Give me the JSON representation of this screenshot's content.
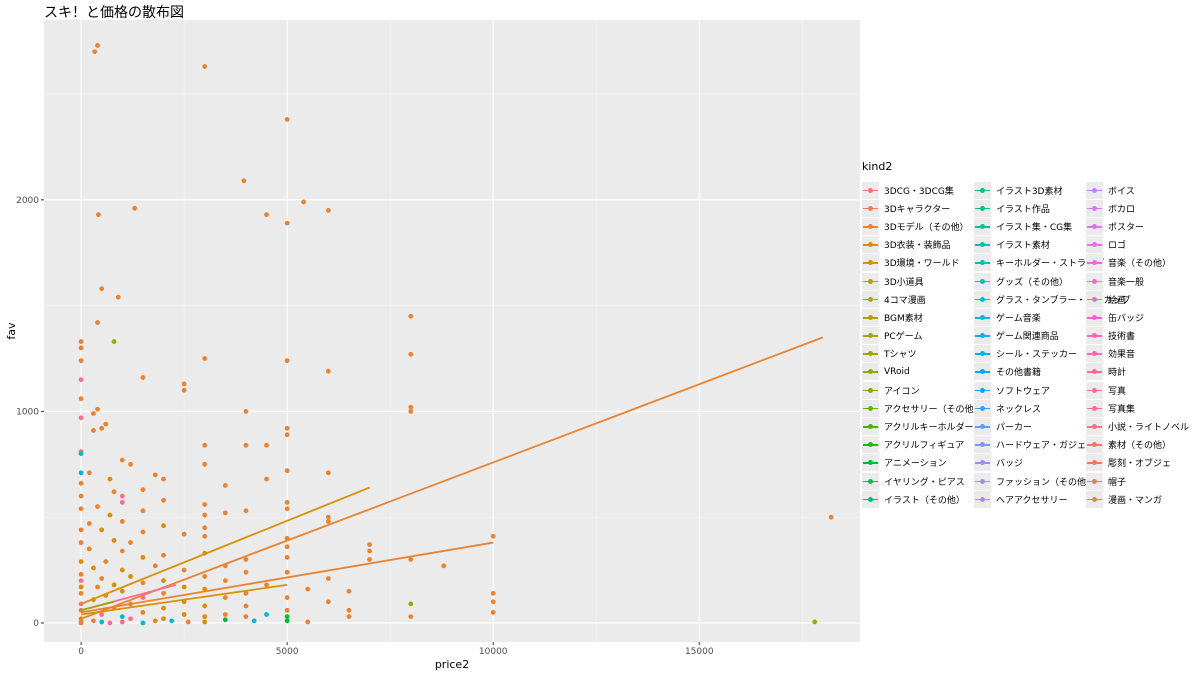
{
  "chart_data": {
    "type": "scatter",
    "title": "スキ！と価格の散布図",
    "xlabel": "price2",
    "ylabel": "fav",
    "xlim": [
      -900,
      18900
    ],
    "ylim": [
      -90,
      2850
    ],
    "x_ticks": [
      0,
      5000,
      10000,
      15000
    ],
    "x_tick_labels": [
      "0",
      "5000",
      "10000",
      "15000"
    ],
    "y_ticks": [
      0,
      1000,
      2000
    ],
    "y_tick_labels": [
      "0",
      "1000",
      "2000"
    ],
    "grid": true,
    "legend_position": "right",
    "legend_title": "kind2",
    "categories": [
      "3DCG・3DCG集",
      "3Dキャラクター",
      "3Dモデル（その他）",
      "3D衣装・装飾品",
      "3D環境・ワールド",
      "3D小道具",
      "4コマ漫画",
      "BGM素材",
      "PCゲーム",
      "Tシャツ",
      "VRoid",
      "アイコン",
      "アクセサリー（その他）",
      "アクリルキーホルダー",
      "アクリルフィギュア",
      "アニメーション",
      "イヤリング・ピアス",
      "イラスト（その他）",
      "イラスト3D素材",
      "イラスト作品",
      "イラスト集・CG集",
      "イラスト素材",
      "キーホルダー・ストラップ",
      "グッズ（その他）",
      "グラス・タンブラー・マグカップ",
      "ゲーム音楽",
      "ゲーム関連商品",
      "シール・ステッカー",
      "その他書籍",
      "ソフトウェア",
      "ネックレス",
      "パーカー",
      "ハードウェア・ガジェット",
      "バッジ",
      "ファッション（その他）",
      "ヘアアクセサリー",
      "ボイス",
      "ボカロ",
      "ポスター",
      "ロゴ",
      "音楽（その他）",
      "音楽一般",
      "絵画",
      "缶バッジ",
      "技術書",
      "効果音",
      "時計",
      "写真",
      "写真集",
      "小説・ライトノベル",
      "素材（その他）",
      "彫刻・オブジェ",
      "帽子",
      "漫画・マンガ"
    ],
    "colors": [
      "#F8766D",
      "#F27D52",
      "#EA8331",
      "#E18A00",
      "#D89000",
      "#CD9600",
      "#C09B00",
      "#B79F00",
      "#AAA300",
      "#9DA700",
      "#8FAA00",
      "#7CAE00",
      "#66B200",
      "#49B500",
      "#1EB800",
      "#00BA38",
      "#00BC59",
      "#00BE70",
      "#00BF80",
      "#00C08E",
      "#00C19C",
      "#00C0AA",
      "#00BFB7",
      "#00BDC2",
      "#00BBCE",
      "#00B8D9",
      "#00B4E4",
      "#00B0F6",
      "#00ABFD",
      "#00A5FF",
      "#35A2FF",
      "#619CFF",
      "#7F96FF",
      "#9590FF",
      "#A88AFF",
      "#B983FF",
      "#C77CFF",
      "#D376FF",
      "#DE71F9",
      "#E76BF3",
      "#EF67EB",
      "#F663E3",
      "#FB61D7",
      "#FF61CC",
      "#FF62BF",
      "#FF65B0",
      "#FF689F",
      "#FF6C91",
      "#FF6A98",
      "#FC717F",
      "#F7756F",
      "#F37B59",
      "#EE7E4A",
      "#E9843A"
    ],
    "points": [
      {
        "x": 400,
        "y": 2730,
        "k": 2
      },
      {
        "x": 330,
        "y": 2700,
        "k": 2
      },
      {
        "x": 3000,
        "y": 2630,
        "k": 2
      },
      {
        "x": 5000,
        "y": 2380,
        "k": 2
      },
      {
        "x": 3950,
        "y": 2090,
        "k": 2
      },
      {
        "x": 5400,
        "y": 1990,
        "k": 2
      },
      {
        "x": 1300,
        "y": 1960,
        "k": 2
      },
      {
        "x": 6000,
        "y": 1950,
        "k": 2
      },
      {
        "x": 420,
        "y": 1930,
        "k": 2
      },
      {
        "x": 4500,
        "y": 1930,
        "k": 2
      },
      {
        "x": 5000,
        "y": 1890,
        "k": 2
      },
      {
        "x": 500,
        "y": 1580,
        "k": 2
      },
      {
        "x": 900,
        "y": 1540,
        "k": 2
      },
      {
        "x": 8000,
        "y": 1450,
        "k": 2
      },
      {
        "x": 400,
        "y": 1420,
        "k": 2
      },
      {
        "x": 0,
        "y": 1330,
        "k": 2
      },
      {
        "x": 800,
        "y": 1330,
        "k": 9
      },
      {
        "x": 0,
        "y": 1300,
        "k": 2
      },
      {
        "x": 8000,
        "y": 1270,
        "k": 2
      },
      {
        "x": 3000,
        "y": 1250,
        "k": 2
      },
      {
        "x": 5000,
        "y": 1240,
        "k": 2
      },
      {
        "x": 0,
        "y": 1240,
        "k": 2
      },
      {
        "x": 6000,
        "y": 1190,
        "k": 2
      },
      {
        "x": 1500,
        "y": 1160,
        "k": 2
      },
      {
        "x": 0,
        "y": 1150,
        "k": 47
      },
      {
        "x": 2500,
        "y": 1130,
        "k": 2
      },
      {
        "x": 2500,
        "y": 1100,
        "k": 2
      },
      {
        "x": 0,
        "y": 1060,
        "k": 2
      },
      {
        "x": 400,
        "y": 1010,
        "k": 2
      },
      {
        "x": 8000,
        "y": 1020,
        "k": 2
      },
      {
        "x": 4000,
        "y": 1000,
        "k": 2
      },
      {
        "x": 8000,
        "y": 1000,
        "k": 2
      },
      {
        "x": 300,
        "y": 990,
        "k": 2
      },
      {
        "x": 0,
        "y": 970,
        "k": 47
      },
      {
        "x": 600,
        "y": 940,
        "k": 2
      },
      {
        "x": 500,
        "y": 920,
        "k": 2
      },
      {
        "x": 5000,
        "y": 920,
        "k": 2
      },
      {
        "x": 300,
        "y": 910,
        "k": 2
      },
      {
        "x": 5000,
        "y": 890,
        "k": 2
      },
      {
        "x": 3000,
        "y": 840,
        "k": 2
      },
      {
        "x": 4500,
        "y": 840,
        "k": 2
      },
      {
        "x": 4000,
        "y": 840,
        "k": 2
      },
      {
        "x": 0,
        "y": 810,
        "k": 2
      },
      {
        "x": 0,
        "y": 800,
        "k": 25
      },
      {
        "x": 1000,
        "y": 770,
        "k": 2
      },
      {
        "x": 1200,
        "y": 750,
        "k": 2
      },
      {
        "x": 3000,
        "y": 750,
        "k": 2
      },
      {
        "x": 5000,
        "y": 720,
        "k": 2
      },
      {
        "x": 0,
        "y": 710,
        "k": 27
      },
      {
        "x": 6000,
        "y": 710,
        "k": 2
      },
      {
        "x": 200,
        "y": 710,
        "k": 2
      },
      {
        "x": 1800,
        "y": 700,
        "k": 2
      },
      {
        "x": 4500,
        "y": 680,
        "k": 2
      },
      {
        "x": 2000,
        "y": 680,
        "k": 2
      },
      {
        "x": 700,
        "y": 680,
        "k": 4
      },
      {
        "x": 0,
        "y": 660,
        "k": 2
      },
      {
        "x": 3500,
        "y": 650,
        "k": 2
      },
      {
        "x": 1500,
        "y": 630,
        "k": 2
      },
      {
        "x": 800,
        "y": 620,
        "k": 2
      },
      {
        "x": 1000,
        "y": 600,
        "k": 47
      },
      {
        "x": 0,
        "y": 600,
        "k": 2
      },
      {
        "x": 2000,
        "y": 580,
        "k": 2
      },
      {
        "x": 5000,
        "y": 570,
        "k": 2
      },
      {
        "x": 3000,
        "y": 560,
        "k": 2
      },
      {
        "x": 1000,
        "y": 570,
        "k": 47
      },
      {
        "x": 400,
        "y": 550,
        "k": 2
      },
      {
        "x": 0,
        "y": 540,
        "k": 2
      },
      {
        "x": 5000,
        "y": 540,
        "k": 2
      },
      {
        "x": 1500,
        "y": 530,
        "k": 2
      },
      {
        "x": 4000,
        "y": 530,
        "k": 2
      },
      {
        "x": 3500,
        "y": 520,
        "k": 2
      },
      {
        "x": 3000,
        "y": 510,
        "k": 2
      },
      {
        "x": 700,
        "y": 510,
        "k": 4
      },
      {
        "x": 18200,
        "y": 500,
        "k": 2
      },
      {
        "x": 6000,
        "y": 500,
        "k": 2
      },
      {
        "x": 6000,
        "y": 480,
        "k": 2
      },
      {
        "x": 1000,
        "y": 480,
        "k": 2
      },
      {
        "x": 200,
        "y": 470,
        "k": 2
      },
      {
        "x": 2000,
        "y": 460,
        "k": 4
      },
      {
        "x": 3000,
        "y": 450,
        "k": 2
      },
      {
        "x": 500,
        "y": 440,
        "k": 4
      },
      {
        "x": 0,
        "y": 440,
        "k": 2
      },
      {
        "x": 1500,
        "y": 430,
        "k": 2
      },
      {
        "x": 2500,
        "y": 420,
        "k": 2
      },
      {
        "x": 10000,
        "y": 410,
        "k": 2
      },
      {
        "x": 3000,
        "y": 410,
        "k": 2
      },
      {
        "x": 5000,
        "y": 400,
        "k": 2
      },
      {
        "x": 800,
        "y": 390,
        "k": 4
      },
      {
        "x": 1200,
        "y": 380,
        "k": 2
      },
      {
        "x": 0,
        "y": 380,
        "k": 2
      },
      {
        "x": 7000,
        "y": 370,
        "k": 2
      },
      {
        "x": 5000,
        "y": 360,
        "k": 2
      },
      {
        "x": 200,
        "y": 350,
        "k": 4
      },
      {
        "x": 7000,
        "y": 340,
        "k": 2
      },
      {
        "x": 1000,
        "y": 340,
        "k": 2
      },
      {
        "x": 3000,
        "y": 330,
        "k": 2
      },
      {
        "x": 2000,
        "y": 320,
        "k": 2
      },
      {
        "x": 5000,
        "y": 310,
        "k": 2
      },
      {
        "x": 1500,
        "y": 310,
        "k": 4
      },
      {
        "x": 8000,
        "y": 300,
        "k": 2
      },
      {
        "x": 4000,
        "y": 300,
        "k": 2
      },
      {
        "x": 7000,
        "y": 300,
        "k": 2
      },
      {
        "x": 600,
        "y": 290,
        "k": 2
      },
      {
        "x": 0,
        "y": 290,
        "k": 4
      },
      {
        "x": 8800,
        "y": 270,
        "k": 2
      },
      {
        "x": 3500,
        "y": 270,
        "k": 2
      },
      {
        "x": 1800,
        "y": 270,
        "k": 2
      },
      {
        "x": 300,
        "y": 260,
        "k": 4
      },
      {
        "x": 2500,
        "y": 250,
        "k": 2
      },
      {
        "x": 1000,
        "y": 250,
        "k": 4
      },
      {
        "x": 5000,
        "y": 240,
        "k": 2
      },
      {
        "x": 4000,
        "y": 240,
        "k": 2
      },
      {
        "x": 0,
        "y": 230,
        "k": 2
      },
      {
        "x": 3000,
        "y": 220,
        "k": 2
      },
      {
        "x": 1200,
        "y": 220,
        "k": 4
      },
      {
        "x": 6000,
        "y": 210,
        "k": 2
      },
      {
        "x": 500,
        "y": 210,
        "k": 2
      },
      {
        "x": 2000,
        "y": 200,
        "k": 4
      },
      {
        "x": 3500,
        "y": 200,
        "k": 2
      },
      {
        "x": 0,
        "y": 200,
        "k": 47
      },
      {
        "x": 1500,
        "y": 190,
        "k": 2
      },
      {
        "x": 800,
        "y": 180,
        "k": 4
      },
      {
        "x": 4500,
        "y": 180,
        "k": 2
      },
      {
        "x": 2500,
        "y": 170,
        "k": 4
      },
      {
        "x": 0,
        "y": 170,
        "k": 4
      },
      {
        "x": 400,
        "y": 170,
        "k": 2
      },
      {
        "x": 3000,
        "y": 160,
        "k": 4
      },
      {
        "x": 5500,
        "y": 160,
        "k": 2
      },
      {
        "x": 6500,
        "y": 150,
        "k": 2
      },
      {
        "x": 1000,
        "y": 150,
        "k": 4
      },
      {
        "x": 10000,
        "y": 140,
        "k": 2
      },
      {
        "x": 4000,
        "y": 140,
        "k": 2
      },
      {
        "x": 2000,
        "y": 140,
        "k": 2
      },
      {
        "x": 0,
        "y": 140,
        "k": 2
      },
      {
        "x": 600,
        "y": 130,
        "k": 4
      },
      {
        "x": 3500,
        "y": 120,
        "k": 2
      },
      {
        "x": 1500,
        "y": 120,
        "k": 47
      },
      {
        "x": 5000,
        "y": 120,
        "k": 2
      },
      {
        "x": 300,
        "y": 110,
        "k": 4
      },
      {
        "x": 10000,
        "y": 100,
        "k": 2
      },
      {
        "x": 2500,
        "y": 100,
        "k": 4
      },
      {
        "x": 6000,
        "y": 100,
        "k": 2
      },
      {
        "x": 8000,
        "y": 90,
        "k": 9
      },
      {
        "x": 1200,
        "y": 90,
        "k": 2
      },
      {
        "x": 0,
        "y": 90,
        "k": 47
      },
      {
        "x": 4000,
        "y": 80,
        "k": 2
      },
      {
        "x": 3000,
        "y": 80,
        "k": 4
      },
      {
        "x": 2000,
        "y": 70,
        "k": 4
      },
      {
        "x": 800,
        "y": 70,
        "k": 2
      },
      {
        "x": 5000,
        "y": 60,
        "k": 2
      },
      {
        "x": 6500,
        "y": 60,
        "k": 2
      },
      {
        "x": 10000,
        "y": 50,
        "k": 2
      },
      {
        "x": 0,
        "y": 60,
        "k": 2
      },
      {
        "x": 1500,
        "y": 50,
        "k": 4
      },
      {
        "x": 3500,
        "y": 40,
        "k": 2
      },
      {
        "x": 4500,
        "y": 40,
        "k": 25
      },
      {
        "x": 2500,
        "y": 40,
        "k": 4
      },
      {
        "x": 500,
        "y": 40,
        "k": 47
      },
      {
        "x": 8000,
        "y": 30,
        "k": 2
      },
      {
        "x": 1000,
        "y": 30,
        "k": 25
      },
      {
        "x": 3000,
        "y": 30,
        "k": 4
      },
      {
        "x": 4000,
        "y": 30,
        "k": 2
      },
      {
        "x": 5000,
        "y": 30,
        "k": 15
      },
      {
        "x": 6500,
        "y": 30,
        "k": 2
      },
      {
        "x": 2000,
        "y": 20,
        "k": 4
      },
      {
        "x": 0,
        "y": 20,
        "k": 4
      },
      {
        "x": 1200,
        "y": 20,
        "k": 47
      },
      {
        "x": 3500,
        "y": 15,
        "k": 15
      },
      {
        "x": 2200,
        "y": 10,
        "k": 25
      },
      {
        "x": 5000,
        "y": 10,
        "k": 15
      },
      {
        "x": 300,
        "y": 10,
        "k": 2
      },
      {
        "x": 4200,
        "y": 10,
        "k": 25
      },
      {
        "x": 1800,
        "y": 10,
        "k": 4
      },
      {
        "x": 2600,
        "y": 5,
        "k": 2
      },
      {
        "x": 1000,
        "y": 5,
        "k": 47
      },
      {
        "x": 5500,
        "y": 5,
        "k": 2
      },
      {
        "x": 17800,
        "y": 5,
        "k": 9
      },
      {
        "x": 0,
        "y": 5,
        "k": 47
      },
      {
        "x": 500,
        "y": 5,
        "k": 25
      },
      {
        "x": 3000,
        "y": 5,
        "k": 4
      },
      {
        "x": 0,
        "y": 0,
        "k": 2
      },
      {
        "x": 700,
        "y": 0,
        "k": 47
      },
      {
        "x": 1500,
        "y": 0,
        "k": 25
      }
    ],
    "trend_lines": [
      {
        "k": 2,
        "x1": 0,
        "y1": 20,
        "x2": 18000,
        "y2": 1350
      },
      {
        "k": 4,
        "x1": 0,
        "y1": 90,
        "x2": 7000,
        "y2": 640
      },
      {
        "k": 2,
        "x1": 0,
        "y1": 50,
        "x2": 10000,
        "y2": 380
      },
      {
        "k": 4,
        "x1": 0,
        "y1": 40,
        "x2": 5000,
        "y2": 180
      },
      {
        "k": 47,
        "x1": 0,
        "y1": 60,
        "x2": 2300,
        "y2": 180
      },
      {
        "k": 9,
        "x1": 0,
        "y1": 60,
        "x2": 800,
        "y2": 100
      }
    ]
  }
}
